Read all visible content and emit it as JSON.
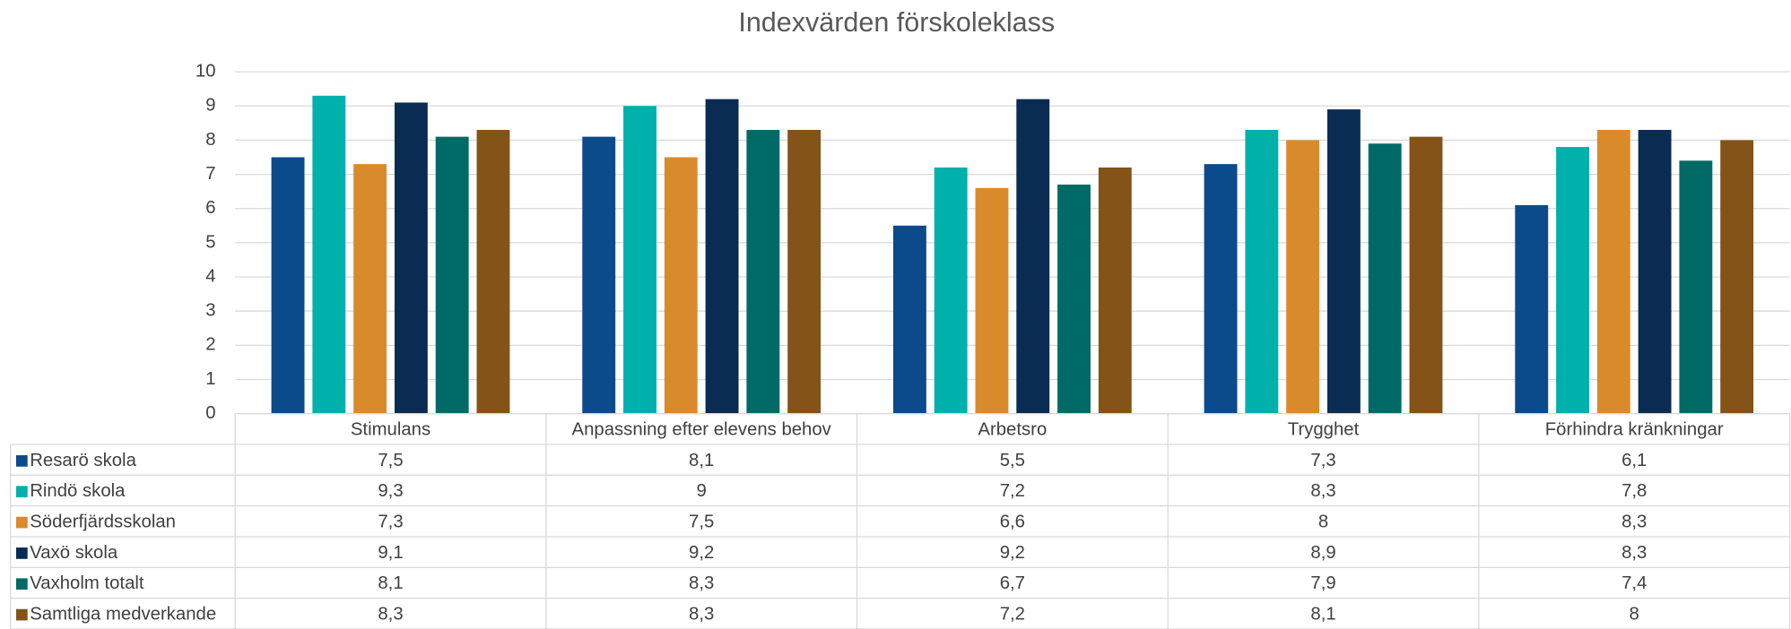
{
  "chart_data": {
    "type": "bar",
    "title": "Indexvärden förskoleklass",
    "categories": [
      "Stimulans",
      "Anpassning efter elevens behov",
      "Arbetsro",
      "Trygghet",
      "Förhindra kränkningar"
    ],
    "series": [
      {
        "name": "Resarö skola",
        "color": "#0b4a8b",
        "values": [
          7.5,
          8.1,
          5.5,
          7.3,
          6.1
        ],
        "value_labels": [
          "7,5",
          "8,1",
          "5,5",
          "7,3",
          "6,1"
        ]
      },
      {
        "name": "Rindö skola",
        "color": "#00b0aa",
        "values": [
          9.3,
          9,
          7.2,
          8.3,
          7.8
        ],
        "value_labels": [
          "9,3",
          "9",
          "7,2",
          "8,3",
          "7,8"
        ]
      },
      {
        "name": "Söderfjärdsskolan",
        "color": "#d98b2b",
        "values": [
          7.3,
          7.5,
          6.6,
          8,
          8.3
        ],
        "value_labels": [
          "7,3",
          "7,5",
          "6,6",
          "8",
          "8,3"
        ]
      },
      {
        "name": "Vaxö skola",
        "color": "#0a2c52",
        "values": [
          9.1,
          9.2,
          9.2,
          8.9,
          8.3
        ],
        "value_labels": [
          "9,1",
          "9,2",
          "9,2",
          "8,9",
          "8,3"
        ]
      },
      {
        "name": "Vaxholm totalt",
        "color": "#006b66",
        "values": [
          8.1,
          8.3,
          6.7,
          7.9,
          7.4
        ],
        "value_labels": [
          "8,1",
          "8,3",
          "6,7",
          "7,9",
          "7,4"
        ]
      },
      {
        "name": "Samtliga medverkande",
        "color": "#845318",
        "values": [
          8.3,
          8.3,
          7.2,
          8.1,
          8
        ],
        "value_labels": [
          "8,3",
          "8,3",
          "7,2",
          "8,1",
          "8"
        ]
      }
    ],
    "ylim": [
      0,
      10
    ],
    "yticks": [
      0,
      1,
      2,
      3,
      4,
      5,
      6,
      7,
      8,
      9,
      10
    ],
    "grid": true
  }
}
